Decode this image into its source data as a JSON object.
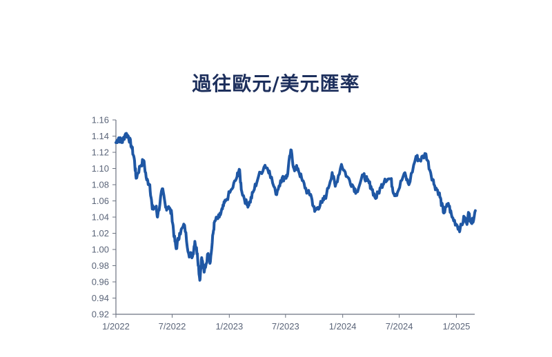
{
  "chart_data": {
    "type": "line",
    "title": "過往歐元/美元匯率",
    "xlabel": "",
    "ylabel": "",
    "ylim": [
      0.92,
      1.16
    ],
    "y_ticks": [
      "0.92",
      "0.94",
      "0.96",
      "0.98",
      "1.00",
      "1.02",
      "1.04",
      "1.06",
      "1.08",
      "1.10",
      "1.12",
      "1.14",
      "1.16"
    ],
    "x_ticks": [
      "1/2022",
      "7/2022",
      "1/2023",
      "7/2023",
      "1/2024",
      "7/2024",
      "1/2025"
    ],
    "x_tick_dates": [
      "2022-01",
      "2022-07",
      "2023-01",
      "2023-07",
      "2024-01",
      "2024-07",
      "2025-01"
    ],
    "xlim": [
      "2022-01",
      "2025-03"
    ],
    "grid": false,
    "series": [
      {
        "color": "#1f57a4",
        "points": [
          [
            "2022-01-01",
            1.132
          ],
          [
            "2022-01-10",
            1.138
          ],
          [
            "2022-01-20",
            1.132
          ],
          [
            "2022-02-01",
            1.143
          ],
          [
            "2022-02-10",
            1.14
          ],
          [
            "2022-02-20",
            1.128
          ],
          [
            "2022-03-01",
            1.112
          ],
          [
            "2022-03-07",
            1.088
          ],
          [
            "2022-03-20",
            1.103
          ],
          [
            "2022-03-31",
            1.11
          ],
          [
            "2022-04-10",
            1.086
          ],
          [
            "2022-04-20",
            1.08
          ],
          [
            "2022-04-28",
            1.05
          ],
          [
            "2022-05-10",
            1.053
          ],
          [
            "2022-05-15",
            1.04
          ],
          [
            "2022-05-30",
            1.075
          ],
          [
            "2022-06-10",
            1.052
          ],
          [
            "2022-06-20",
            1.053
          ],
          [
            "2022-06-30",
            1.043
          ],
          [
            "2022-07-08",
            1.015
          ],
          [
            "2022-07-14",
            1.001
          ],
          [
            "2022-07-25",
            1.02
          ],
          [
            "2022-08-10",
            1.03
          ],
          [
            "2022-08-23",
            0.995
          ],
          [
            "2022-09-05",
            0.992
          ],
          [
            "2022-09-12",
            1.01
          ],
          [
            "2022-09-20",
            0.995
          ],
          [
            "2022-09-28",
            0.962
          ],
          [
            "2022-10-04",
            0.99
          ],
          [
            "2022-10-12",
            0.972
          ],
          [
            "2022-10-25",
            0.995
          ],
          [
            "2022-11-01",
            0.985
          ],
          [
            "2022-11-10",
            1.02
          ],
          [
            "2022-11-15",
            1.035
          ],
          [
            "2022-11-30",
            1.04
          ],
          [
            "2022-12-10",
            1.05
          ],
          [
            "2022-12-20",
            1.06
          ],
          [
            "2023-01-10",
            1.075
          ],
          [
            "2023-01-26",
            1.09
          ],
          [
            "2023-02-02",
            1.099
          ],
          [
            "2023-02-10",
            1.072
          ],
          [
            "2023-02-27",
            1.055
          ],
          [
            "2023-03-08",
            1.058
          ],
          [
            "2023-03-20",
            1.072
          ],
          [
            "2023-04-05",
            1.09
          ],
          [
            "2023-04-26",
            1.104
          ],
          [
            "2023-05-10",
            1.097
          ],
          [
            "2023-05-31",
            1.068
          ],
          [
            "2023-06-15",
            1.085
          ],
          [
            "2023-06-30",
            1.09
          ],
          [
            "2023-07-06",
            1.09
          ],
          [
            "2023-07-18",
            1.123
          ],
          [
            "2023-07-28",
            1.1
          ],
          [
            "2023-08-10",
            1.1
          ],
          [
            "2023-08-24",
            1.085
          ],
          [
            "2023-09-10",
            1.07
          ],
          [
            "2023-09-20",
            1.068
          ],
          [
            "2023-10-03",
            1.047
          ],
          [
            "2023-10-13",
            1.052
          ],
          [
            "2023-10-27",
            1.058
          ],
          [
            "2023-11-10",
            1.068
          ],
          [
            "2023-11-28",
            1.095
          ],
          [
            "2023-12-08",
            1.078
          ],
          [
            "2023-12-28",
            1.105
          ],
          [
            "2024-01-15",
            1.09
          ],
          [
            "2024-02-01",
            1.08
          ],
          [
            "2024-02-14",
            1.071
          ],
          [
            "2024-03-08",
            1.092
          ],
          [
            "2024-03-20",
            1.085
          ],
          [
            "2024-04-01",
            1.078
          ],
          [
            "2024-04-16",
            1.063
          ],
          [
            "2024-05-03",
            1.077
          ],
          [
            "2024-05-16",
            1.087
          ],
          [
            "2024-06-04",
            1.087
          ],
          [
            "2024-06-14",
            1.069
          ],
          [
            "2024-06-25",
            1.07
          ],
          [
            "2024-07-17",
            1.094
          ],
          [
            "2024-08-01",
            1.08
          ],
          [
            "2024-08-24",
            1.115
          ],
          [
            "2024-09-05",
            1.11
          ],
          [
            "2024-09-25",
            1.118
          ],
          [
            "2024-10-10",
            1.095
          ],
          [
            "2024-10-23",
            1.079
          ],
          [
            "2024-11-06",
            1.07
          ],
          [
            "2024-11-15",
            1.055
          ],
          [
            "2024-11-22",
            1.045
          ],
          [
            "2024-12-06",
            1.057
          ],
          [
            "2024-12-18",
            1.04
          ],
          [
            "2025-01-03",
            1.03
          ],
          [
            "2025-01-13",
            1.025
          ],
          [
            "2025-01-27",
            1.04
          ],
          [
            "2025-02-03",
            1.032
          ],
          [
            "2025-02-10",
            1.045
          ],
          [
            "2025-02-20",
            1.032
          ],
          [
            "2025-03-03",
            1.048
          ]
        ]
      }
    ]
  }
}
